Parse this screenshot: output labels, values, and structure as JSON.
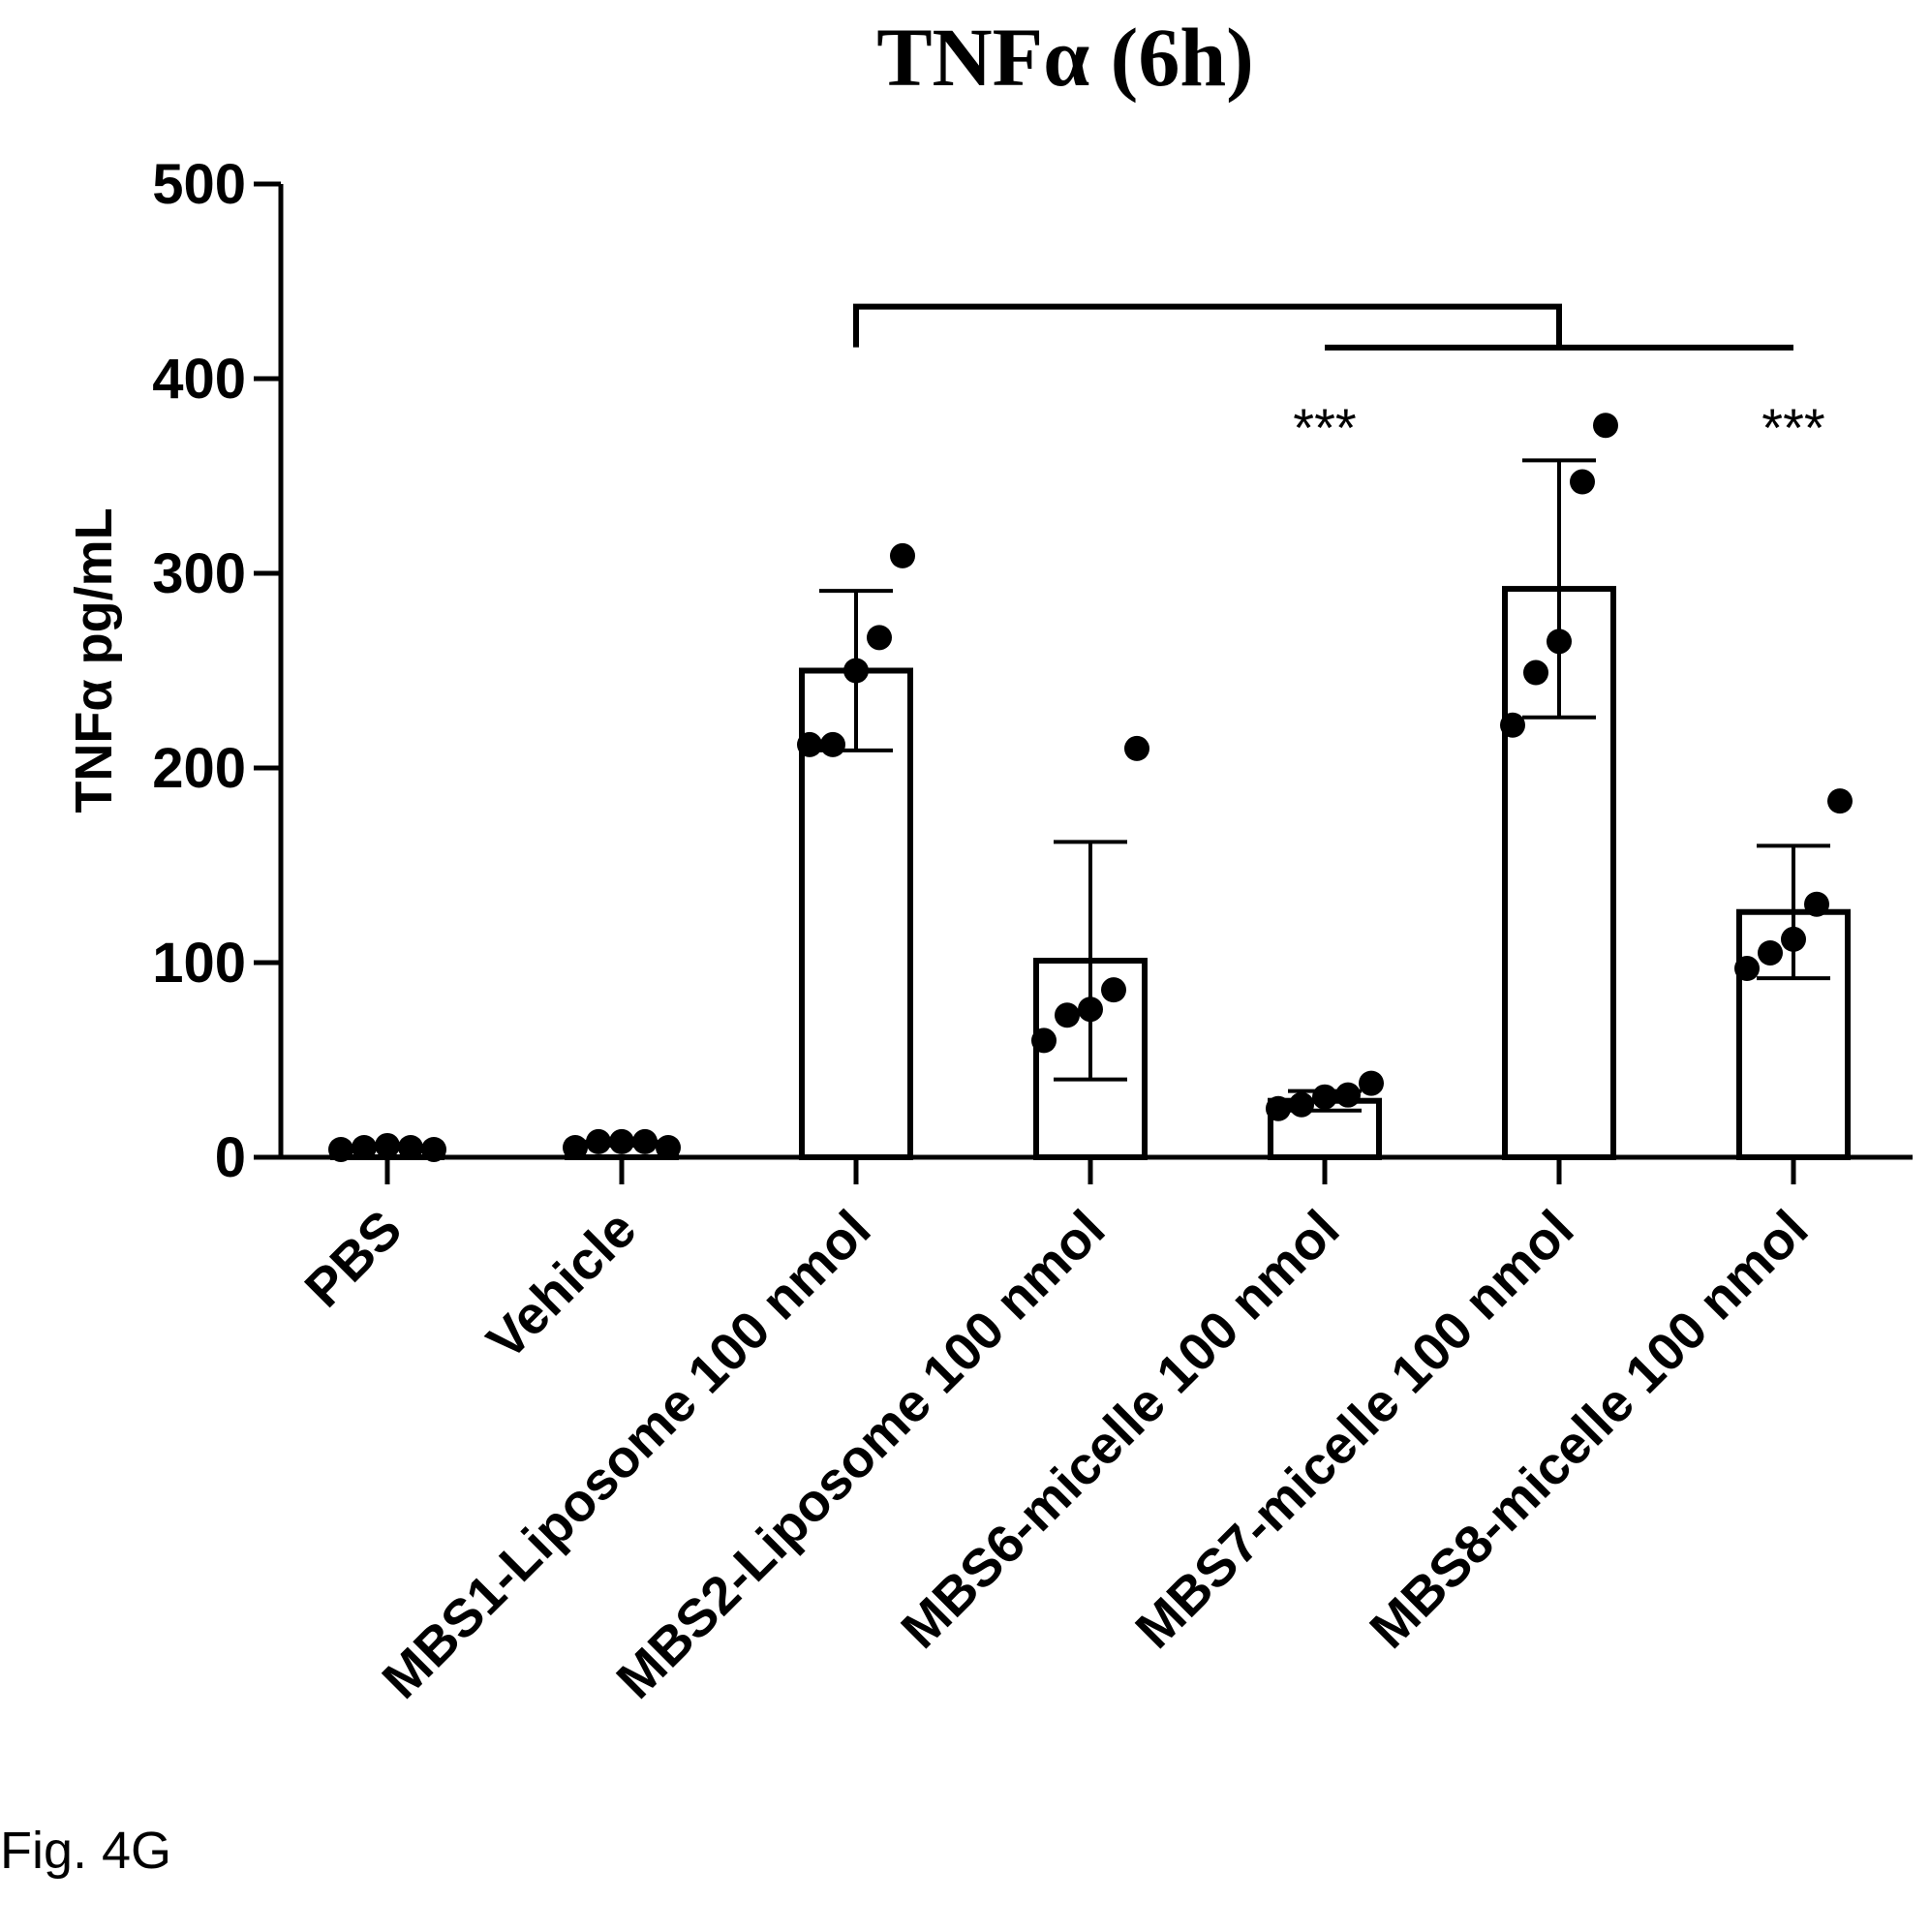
{
  "figure_label": "Fig. 4G",
  "chart_data": {
    "type": "bar",
    "title": "TNFα (6h)",
    "xlabel": "",
    "ylabel": "TNFα pg/mL",
    "ylim": [
      0,
      500
    ],
    "yticks": [
      0,
      100,
      200,
      300,
      400,
      500
    ],
    "grid": false,
    "categories": [
      "PBS",
      "Vehicle",
      "MBS1-Liposome 100 nmol",
      "MBS2-Liposome 100 nmol",
      "MBS6-micelle 100 nmol",
      "MBS7-micelle 100 nmol",
      "MBS8-micelle 100 nmol"
    ],
    "values": [
      5,
      7,
      250,
      101,
      29,
      292,
      126
    ],
    "error": [
      1,
      1,
      41,
      61,
      5,
      66,
      34
    ],
    "points": [
      [
        4,
        5,
        6,
        5,
        4
      ],
      [
        5,
        8,
        8,
        8,
        5
      ],
      [
        212,
        212,
        250,
        267,
        309
      ],
      [
        60,
        73,
        76,
        86,
        210
      ],
      [
        25,
        27,
        31,
        32,
        38
      ],
      [
        222,
        249,
        265,
        347,
        376
      ],
      [
        97,
        105,
        112,
        130,
        183
      ]
    ],
    "brackets": [
      {
        "from": 2,
        "to": 5,
        "y": 437
      },
      {
        "from": 4,
        "to": 6,
        "y": 416
      }
    ],
    "annotations": [
      {
        "category": 4,
        "text": "***",
        "y": 380
      },
      {
        "category": 6,
        "text": "***",
        "y": 380
      }
    ]
  }
}
